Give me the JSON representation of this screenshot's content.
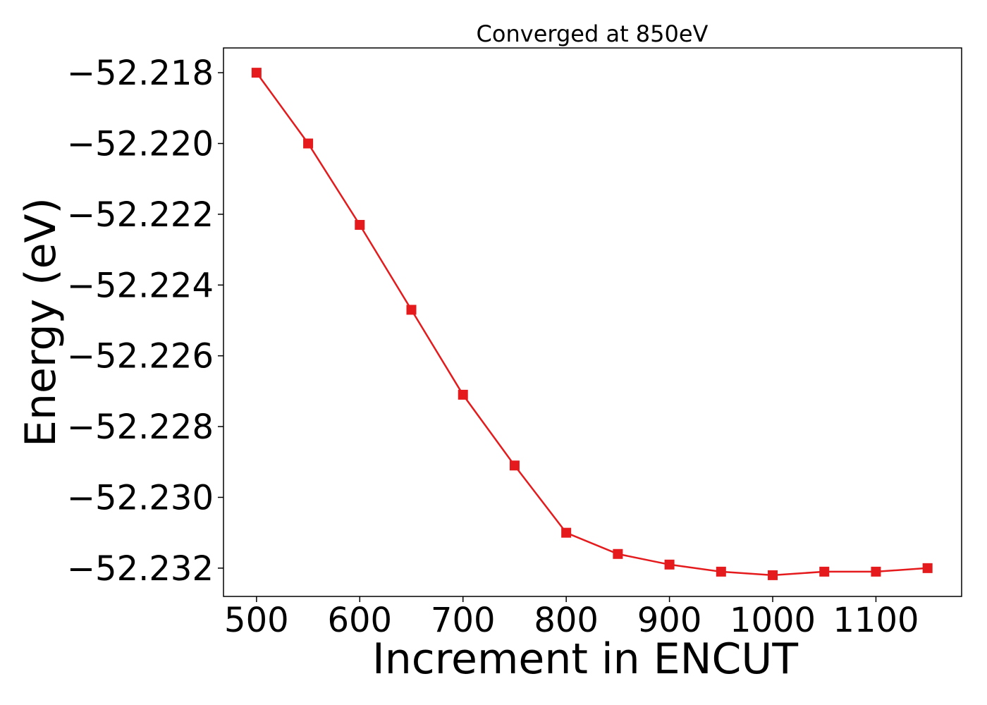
{
  "chart_data": {
    "type": "line",
    "title": "Converged at 850eV",
    "xlabel": "Increment in ENCUT",
    "ylabel": "Energy (eV)",
    "xlim": [
      468,
      1183
    ],
    "ylim": [
      -52.2328,
      -52.2173
    ],
    "x_ticks": [
      500,
      600,
      700,
      800,
      900,
      1000,
      1100
    ],
    "x_tick_labels": [
      "500",
      "600",
      "700",
      "800",
      "900",
      "1000",
      "1100"
    ],
    "y_ticks": [
      -52.218,
      -52.22,
      -52.222,
      -52.224,
      -52.226,
      -52.228,
      -52.23,
      -52.232
    ],
    "y_tick_labels": [
      "−52.218",
      "−52.220",
      "−52.222",
      "−52.224",
      "−52.226",
      "−52.228",
      "−52.230",
      "−52.232"
    ],
    "grid": false,
    "legend": "none",
    "series": [
      {
        "color": "#e41a1c",
        "marker": "square",
        "points": [
          {
            "x": 500,
            "y": -52.218
          },
          {
            "x": 550,
            "y": -52.22
          },
          {
            "x": 600,
            "y": -52.2223
          },
          {
            "x": 650,
            "y": -52.2247
          },
          {
            "x": 700,
            "y": -52.2271
          },
          {
            "x": 750,
            "y": -52.2291
          },
          {
            "x": 800,
            "y": -52.231
          },
          {
            "x": 850,
            "y": -52.2316
          },
          {
            "x": 900,
            "y": -52.2319
          },
          {
            "x": 950,
            "y": -52.2321
          },
          {
            "x": 1000,
            "y": -52.2322
          },
          {
            "x": 1050,
            "y": -52.2321
          },
          {
            "x": 1100,
            "y": -52.2321
          },
          {
            "x": 1150,
            "y": -52.232
          }
        ]
      }
    ]
  }
}
